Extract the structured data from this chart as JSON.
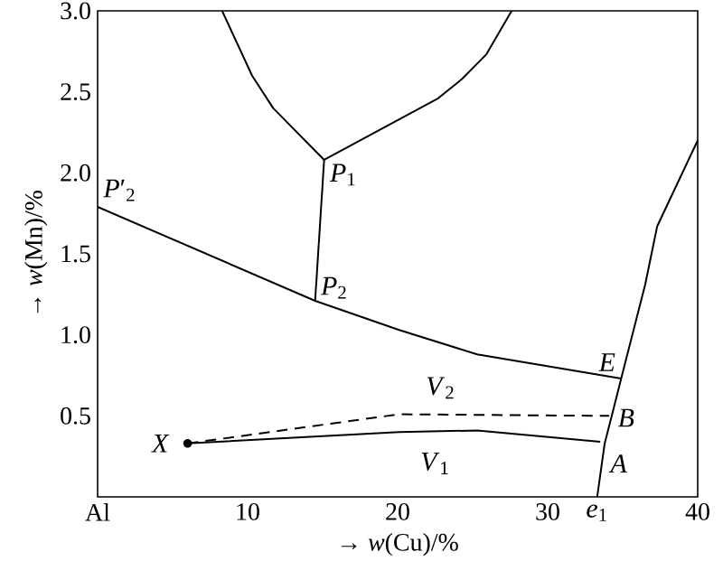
{
  "chart_data": {
    "type": "line",
    "xlabel": "→ *w*(Cu)/%",
    "ylabel": "→ *w*(Mn)/%",
    "xlim": [
      0,
      40
    ],
    "ylim": [
      0,
      3
    ],
    "xticks": [
      {
        "value": 0,
        "label": "Al"
      },
      10,
      20,
      30,
      40
    ],
    "yticks": [
      {
        "value": 0.5,
        "label": "0.5"
      },
      {
        "value": 1.0,
        "label": "1.0"
      },
      {
        "value": 1.5,
        "label": "1.5"
      },
      {
        "value": 2.0,
        "label": "2.0"
      },
      {
        "value": 2.5,
        "label": "2.5"
      },
      {
        "value": 3.0,
        "label": "3.0"
      }
    ],
    "grid": false,
    "series": [
      {
        "color": "#000000",
        "x": [
          8.3,
          10.3,
          11.7,
          15.1,
          22.7,
          24.3,
          25.9,
          27.6
        ],
        "values": [
          3.0,
          2.6,
          2.4,
          2.08,
          2.46,
          2.58,
          2.73,
          3.0
        ]
      },
      {
        "color": "#000000",
        "x": [
          15.1,
          14.5
        ],
        "values": [
          2.08,
          1.21
        ]
      },
      {
        "color": "#000000",
        "x": [
          0,
          14.5,
          20.1,
          25.3,
          34.9
        ],
        "values": [
          1.79,
          1.21,
          1.03,
          0.88,
          0.73
        ]
      },
      {
        "color": "#000000",
        "x": [
          33.3,
          33.8,
          34.3,
          34.9,
          36.5,
          37.3,
          40
        ],
        "values": [
          0,
          0.33,
          0.51,
          0.73,
          1.31,
          1.67,
          2.2
        ]
      },
      {
        "name": "*V*$_{1}$",
        "color": "#000000",
        "x": [
          6.0,
          20.1,
          25.3,
          33.5
        ],
        "values": [
          0.33,
          0.4,
          0.41,
          0.34
        ]
      },
      {
        "name": "*V*$_{2}$",
        "color": "#000000",
        "line_style": "dashed",
        "x": [
          6.0,
          20.1,
          34.1
        ],
        "values": [
          0.33,
          0.51,
          0.5
        ]
      },
      {
        "type": "scatter",
        "marker": "circle",
        "color": "#000000",
        "x": [
          6.0
        ],
        "values": [
          0.33
        ]
      }
    ],
    "annotations": [
      {
        "text": "*P*$_{1}$",
        "x": 15.1,
        "y": 2.08
      },
      {
        "text": "*P*$_{2}$",
        "x": 14.5,
        "y": 1.21
      },
      {
        "text": "*P*′$_{2}$",
        "x": 0,
        "y": 1.79
      },
      {
        "text": "*E*",
        "x": 34.9,
        "y": 0.73
      },
      {
        "text": "*X*",
        "x": 6.0,
        "y": 0.33
      },
      {
        "text": "*B*",
        "x": 34.3,
        "y": 0.51
      },
      {
        "text": "*A*",
        "x": 33.8,
        "y": 0.33
      },
      {
        "text": "*e*$_{1}$",
        "x": 33.3,
        "y": 0
      }
    ]
  }
}
